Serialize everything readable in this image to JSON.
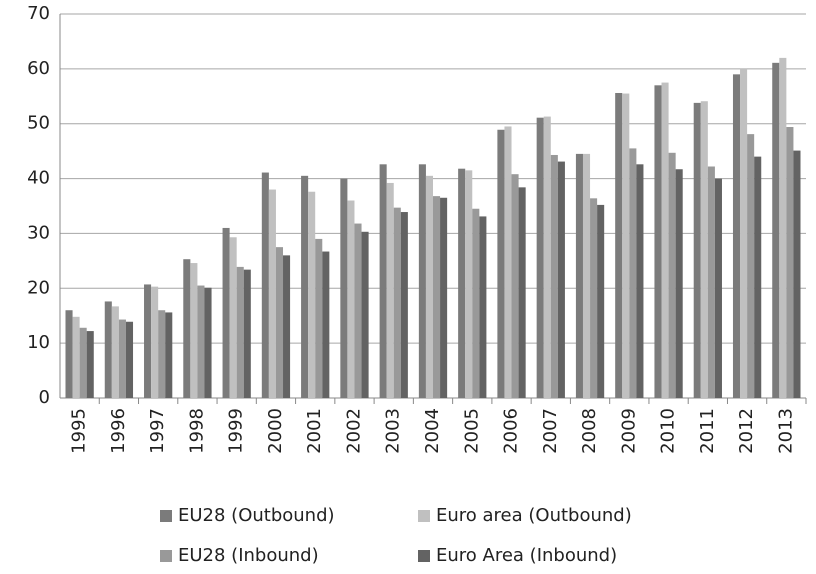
{
  "chart_data": {
    "type": "bar",
    "categories": [
      "1995",
      "1996",
      "1997",
      "1998",
      "1999",
      "2000",
      "2001",
      "2002",
      "2003",
      "2004",
      "2005",
      "2006",
      "2007",
      "2008",
      "2009",
      "2010",
      "2011",
      "2012",
      "2013"
    ],
    "series": [
      {
        "name": "EU28 (Outbound)",
        "color": "#7b7b7b",
        "values": [
          16.0,
          17.6,
          20.7,
          25.3,
          31.0,
          41.1,
          40.5,
          40.0,
          42.6,
          42.6,
          41.8,
          48.9,
          51.1,
          44.5,
          55.6,
          57.0,
          53.8,
          59.0,
          61.1
        ]
      },
      {
        "name": "Euro area (Outbound)",
        "color": "#c0c0c0",
        "values": [
          14.8,
          16.7,
          20.3,
          24.6,
          29.3,
          38.0,
          37.6,
          36.0,
          39.2,
          40.5,
          41.5,
          49.5,
          51.3,
          44.5,
          55.5,
          57.5,
          54.1,
          60.0,
          62.0
        ]
      },
      {
        "name": "EU28 (Inbound)",
        "color": "#999999",
        "values": [
          12.8,
          14.3,
          16.0,
          20.5,
          23.9,
          27.5,
          29.0,
          31.8,
          34.7,
          36.8,
          34.5,
          40.8,
          44.3,
          36.4,
          45.5,
          44.7,
          42.2,
          48.1,
          49.4
        ]
      },
      {
        "name": "Euro Area (Inbound)",
        "color": "#636363",
        "values": [
          12.2,
          13.9,
          15.6,
          20.1,
          23.4,
          26.0,
          26.7,
          30.3,
          33.9,
          36.5,
          33.1,
          38.4,
          43.1,
          35.2,
          42.6,
          41.7,
          40.0,
          44.0,
          45.1
        ]
      }
    ],
    "ylim": [
      0,
      70
    ],
    "yticks": [
      0,
      10,
      20,
      30,
      40,
      50,
      60,
      70
    ],
    "grid": true,
    "legend": "bottom"
  }
}
